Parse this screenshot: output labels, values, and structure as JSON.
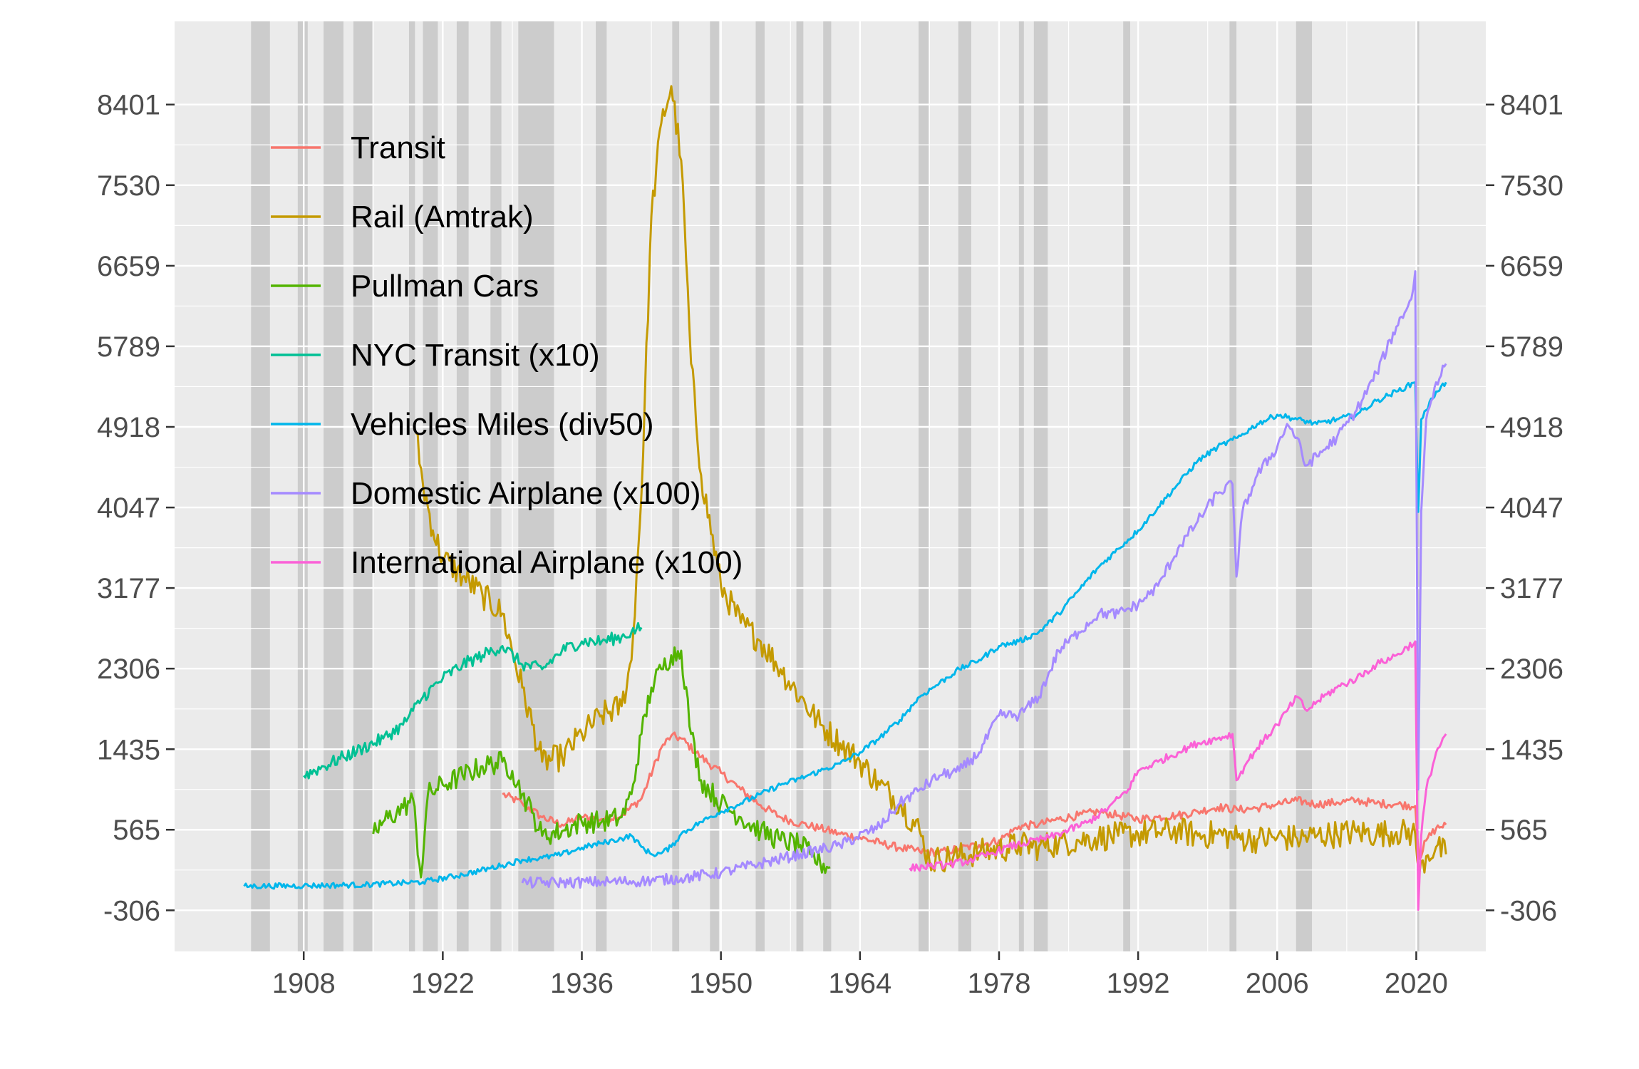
{
  "chart_data": {
    "type": "line",
    "title": "",
    "xlabel": "",
    "ylabel": "",
    "xlim": [
      1895,
      2027
    ],
    "ylim": [
      -750,
      9300
    ],
    "x_ticks": [
      1908,
      1922,
      1936,
      1950,
      1964,
      1978,
      1992,
      2006,
      2020
    ],
    "x_tick_labels": [
      "1908",
      "1922",
      "1936",
      "1950",
      "1964",
      "1978",
      "1992",
      "2006",
      "2020"
    ],
    "y_ticks": [
      -306,
      565,
      1435,
      2306,
      3177,
      4047,
      4918,
      5789,
      6659,
      7530,
      8401
    ],
    "y_tick_labels": [
      "-306",
      "565",
      "1435",
      "2306",
      "3177",
      "4047",
      "4918",
      "5789",
      "6659",
      "7530",
      "8401"
    ],
    "y_axis_duplicated_right": true,
    "grid": true,
    "legend_position": "top-left",
    "recession_shading_color": "#cccccc",
    "recessions": [
      [
        1902.7,
        1904.6
      ],
      [
        1907.4,
        1908.4
      ],
      [
        1910.0,
        1912.0
      ],
      [
        1913.0,
        1914.9
      ],
      [
        1918.6,
        1919.2
      ],
      [
        1920.0,
        1921.5
      ],
      [
        1923.4,
        1924.6
      ],
      [
        1926.8,
        1927.9
      ],
      [
        1929.6,
        1933.2
      ],
      [
        1937.4,
        1938.5
      ],
      [
        1945.1,
        1945.8
      ],
      [
        1948.9,
        1949.8
      ],
      [
        1953.5,
        1954.4
      ],
      [
        1957.6,
        1958.3
      ],
      [
        1960.3,
        1961.1
      ],
      [
        1969.9,
        1970.9
      ],
      [
        1973.9,
        1975.2
      ],
      [
        1980.0,
        1980.5
      ],
      [
        1981.5,
        1982.9
      ],
      [
        1990.5,
        1991.2
      ],
      [
        2001.2,
        2001.9
      ],
      [
        2007.9,
        2009.5
      ],
      [
        2020.1,
        2020.3
      ]
    ],
    "series": [
      {
        "name": "Transit",
        "color": "#F8766D",
        "noise": 45,
        "x": [
          1928,
          1930,
          1932,
          1934,
          1936,
          1938,
          1940,
          1942,
          1944,
          1945,
          1946,
          1948,
          1950,
          1952,
          1954,
          1956,
          1958,
          1960,
          1962,
          1964,
          1966,
          1968,
          1970,
          1972,
          1974,
          1976,
          1978,
          1980,
          1982,
          1984,
          1986,
          1988,
          1990,
          1992,
          1994,
          1996,
          1998,
          2000,
          2002,
          2004,
          2006,
          2008,
          2010,
          2012,
          2014,
          2016,
          2018,
          2019.9,
          2020.3,
          2021,
          2022,
          2023
        ],
        "y": [
          950,
          850,
          700,
          620,
          700,
          680,
          720,
          900,
          1450,
          1580,
          1550,
          1350,
          1180,
          1000,
          830,
          700,
          630,
          580,
          520,
          480,
          420,
          370,
          330,
          320,
          360,
          400,
          450,
          600,
          620,
          680,
          720,
          760,
          720,
          680,
          700,
          720,
          760,
          810,
          780,
          800,
          840,
          880,
          840,
          860,
          880,
          850,
          840,
          820,
          250,
          450,
          580,
          620
        ]
      },
      {
        "name": "Rail (Amtrak)",
        "color": "#C49A00",
        "noise": 150,
        "x": [
          1919.3,
          1920,
          1921,
          1922,
          1924,
          1926,
          1928,
          1930,
          1932,
          1934,
          1936,
          1938,
          1940,
          1941,
          1942,
          1943,
          1944,
          1945,
          1946,
          1947,
          1948,
          1950,
          1952,
          1954,
          1956,
          1958,
          1960,
          1962,
          1964,
          1966,
          1968,
          1970,
          1971,
          1972,
          1974,
          1976,
          1978,
          1980,
          1982,
          1984,
          1986,
          1988,
          1990,
          1992,
          1994,
          1996,
          1998,
          2000,
          2002,
          2004,
          2006,
          2008,
          2010,
          2012,
          2014,
          2016,
          2018,
          2019.9,
          2020.3,
          2021,
          2022,
          2023
        ],
        "y": [
          4850,
          4300,
          3800,
          3500,
          3300,
          3100,
          2900,
          2100,
          1300,
          1350,
          1600,
          1800,
          1900,
          2400,
          4200,
          7200,
          8200,
          8600,
          7800,
          5600,
          4400,
          3200,
          2800,
          2600,
          2300,
          2000,
          1700,
          1500,
          1300,
          1050,
          850,
          550,
          220,
          250,
          280,
          320,
          350,
          400,
          380,
          420,
          450,
          480,
          500,
          520,
          540,
          560,
          500,
          520,
          480,
          460,
          480,
          470,
          500,
          520,
          540,
          520,
          540,
          520,
          80,
          280,
          380,
          300
        ]
      },
      {
        "name": "Pullman Cars",
        "color": "#53B400",
        "noise": 120,
        "x": [
          1915,
          1916,
          1918,
          1919,
          1919.8,
          1920.5,
          1922,
          1924,
          1926,
          1928,
          1929,
          1930,
          1931,
          1932,
          1934,
          1936,
          1938,
          1940,
          1941,
          1942,
          1943,
          1944,
          1945,
          1946,
          1947,
          1948,
          1950,
          1952,
          1954,
          1956,
          1958,
          1959,
          1960,
          1961
        ],
        "y": [
          520,
          650,
          800,
          900,
          50,
          950,
          1050,
          1150,
          1250,
          1300,
          1200,
          950,
          750,
          500,
          550,
          650,
          650,
          700,
          950,
          1600,
          2100,
          2300,
          2450,
          2500,
          1600,
          1100,
          850,
          700,
          550,
          450,
          400,
          300,
          200,
          160
        ]
      },
      {
        "name": "NYC Transit (x10)",
        "color": "#00C094",
        "noise": 70,
        "x": [
          1908,
          1910,
          1912,
          1914,
          1916,
          1918,
          1919,
          1920,
          1922,
          1924,
          1926,
          1928,
          1930,
          1932,
          1934,
          1936,
          1938,
          1940,
          1941,
          1942
        ],
        "y": [
          1150,
          1250,
          1350,
          1450,
          1550,
          1700,
          1850,
          2000,
          2200,
          2350,
          2450,
          2550,
          2350,
          2300,
          2500,
          2600,
          2600,
          2650,
          2700,
          2750
        ]
      },
      {
        "name": "Vehicles Miles (div50)",
        "color": "#00B6EB",
        "noise": 30,
        "x": [
          1902,
          1908,
          1914,
          1920,
          1924,
          1928,
          1930,
          1932,
          1934,
          1936,
          1938,
          1940,
          1941,
          1942,
          1943,
          1944,
          1945,
          1946,
          1948,
          1950,
          1952,
          1954,
          1956,
          1958,
          1960,
          1962,
          1964,
          1966,
          1968,
          1970,
          1972,
          1974,
          1976,
          1978,
          1980,
          1982,
          1984,
          1986,
          1988,
          1990,
          1992,
          1994,
          1996,
          1998,
          2000,
          2002,
          2004,
          2006,
          2008,
          2010,
          2012,
          2014,
          2016,
          2018,
          2019.9,
          2020.2,
          2020.5,
          2021,
          2022,
          2023
        ],
        "y": [
          -45,
          -40,
          -30,
          0,
          80,
          180,
          240,
          260,
          300,
          370,
          420,
          470,
          500,
          380,
          300,
          310,
          380,
          520,
          650,
          760,
          850,
          950,
          1050,
          1120,
          1200,
          1280,
          1400,
          1560,
          1750,
          2000,
          2150,
          2300,
          2400,
          2550,
          2600,
          2700,
          2900,
          3150,
          3400,
          3600,
          3800,
          4050,
          4300,
          4550,
          4700,
          4800,
          4950,
          5050,
          5000,
          4950,
          5000,
          5050,
          5200,
          5300,
          5400,
          4000,
          5000,
          5100,
          5300,
          5400
        ]
      },
      {
        "name": "Domestic Airplane (x100)",
        "color": "#A58AFF",
        "noise": 60,
        "x": [
          1930,
          1934,
          1938,
          1942,
          1946,
          1950,
          1954,
          1958,
          1962,
          1966,
          1968,
          1970,
          1972,
          1974,
          1976,
          1978,
          1980,
          1982,
          1984,
          1986,
          1988,
          1990,
          1992,
          1994,
          1996,
          1998,
          2000,
          2001.5,
          2001.9,
          2002.5,
          2004,
          2006,
          2007,
          2008,
          2008.8,
          2010,
          2012,
          2014,
          2016,
          2018,
          2019.5,
          2019.9,
          2020.2,
          2020.5,
          2021,
          2022,
          2023
        ],
        "y": [
          -10,
          -5,
          0,
          10,
          40,
          100,
          200,
          300,
          400,
          600,
          850,
          1000,
          1150,
          1200,
          1400,
          1800,
          1800,
          2000,
          2500,
          2700,
          2900,
          2900,
          3000,
          3200,
          3600,
          3900,
          4200,
          4300,
          3300,
          4000,
          4400,
          4700,
          4950,
          4800,
          4500,
          4600,
          4800,
          5100,
          5500,
          6000,
          6300,
          6600,
          1000,
          4000,
          5000,
          5400,
          5600
        ]
      },
      {
        "name": "International Airplane (x100)",
        "color": "#FB61D7",
        "noise": 40,
        "x": [
          1969,
          1971,
          1973,
          1975,
          1977,
          1979,
          1981,
          1983,
          1985,
          1987,
          1989,
          1991,
          1992,
          1994,
          1996,
          1998,
          2000,
          2001.5,
          2001.9,
          2003,
          2004,
          2006,
          2008,
          2009,
          2010,
          2012,
          2014,
          2016,
          2018,
          2019.9,
          2020.2,
          2020.5,
          2021,
          2022,
          2023
        ],
        "y": [
          150,
          170,
          190,
          230,
          300,
          380,
          430,
          480,
          560,
          650,
          800,
          1000,
          1200,
          1300,
          1400,
          1500,
          1550,
          1600,
          1100,
          1300,
          1450,
          1700,
          2000,
          1850,
          1950,
          2100,
          2200,
          2350,
          2450,
          2600,
          -300,
          500,
          1000,
          1400,
          1600
        ]
      }
    ]
  }
}
